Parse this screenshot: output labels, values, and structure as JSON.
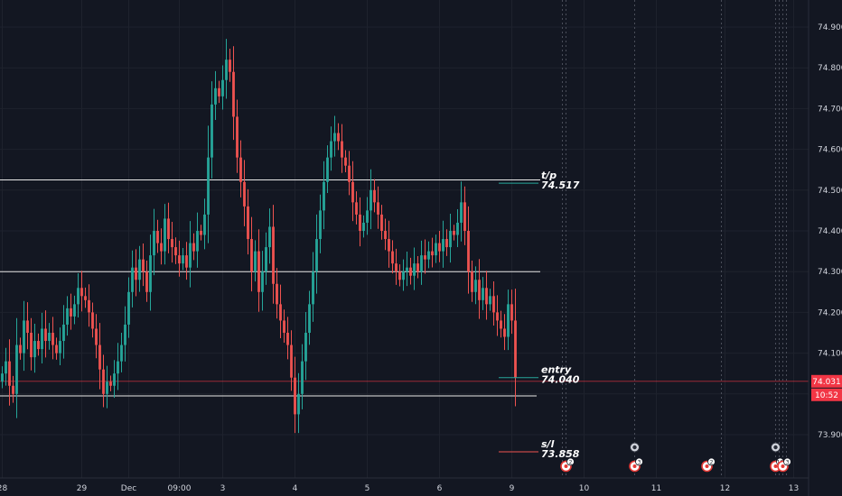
{
  "chart_data": {
    "type": "candlestick",
    "title": "",
    "xlabel": "",
    "ylabel": "",
    "ylim": [
      73.8,
      74.95
    ],
    "y_ticks": [
      "74.900",
      "74.800",
      "74.700",
      "74.600",
      "74.500",
      "74.400",
      "74.300",
      "74.200",
      "74.100",
      "74.000",
      "73.900"
    ],
    "x_ticks": [
      {
        "label": "28",
        "slot": 0
      },
      {
        "label": "29",
        "slot": 22
      },
      {
        "label": "Dec",
        "slot": 35
      },
      {
        "label": "09:00",
        "slot": 49
      },
      {
        "label": "3",
        "slot": 61
      },
      {
        "label": "4",
        "slot": 81
      },
      {
        "label": "5",
        "slot": 101
      },
      {
        "label": "6",
        "slot": 121
      },
      {
        "label": "9",
        "slot": 141
      },
      {
        "label": "10",
        "slot": 161
      },
      {
        "label": "11",
        "slot": 181
      },
      {
        "label": "12",
        "slot": 200
      },
      {
        "label": "13",
        "slot": 219
      }
    ],
    "current_price": "74.031",
    "countdown": "10:52",
    "horizontal_levels": [
      74.525,
      74.3,
      73.995
    ],
    "annotations": [
      {
        "label": "t/p",
        "value": "74.517",
        "price": 74.517
      },
      {
        "label": "entry",
        "value": "74.040",
        "price": 74.04
      },
      {
        "label": "s/l",
        "value": "73.858",
        "price": 73.858
      }
    ],
    "session_markers_slots": [
      155,
      156,
      175,
      199,
      214,
      215,
      216,
      217
    ],
    "event_markers": [
      {
        "slot": 156,
        "label": "2"
      },
      {
        "slot": 175,
        "label": "3"
      },
      {
        "slot": 195,
        "label": "2"
      },
      {
        "slot": 214,
        "label": "10"
      },
      {
        "slot": 216,
        "label": "3"
      }
    ],
    "closes": [
      74.05,
      74.08,
      74.02,
      74.0,
      74.12,
      74.1,
      74.18,
      74.15,
      74.09,
      74.13,
      74.11,
      74.16,
      74.13,
      74.15,
      74.12,
      74.1,
      74.13,
      74.17,
      74.21,
      74.19,
      74.22,
      74.26,
      74.24,
      74.23,
      74.2,
      74.16,
      74.12,
      74.06,
      74.0,
      74.03,
      74.02,
      74.05,
      74.08,
      74.12,
      74.17,
      74.25,
      74.31,
      74.28,
      74.33,
      74.3,
      74.25,
      74.34,
      74.4,
      74.37,
      74.35,
      74.43,
      74.38,
      74.36,
      74.34,
      74.32,
      74.34,
      74.31,
      74.37,
      74.35,
      74.4,
      74.39,
      74.44,
      74.58,
      74.71,
      74.75,
      74.73,
      74.77,
      74.82,
      74.79,
      74.68,
      74.58,
      74.52,
      74.46,
      74.38,
      74.3,
      74.35,
      74.25,
      74.3,
      74.36,
      74.41,
      74.27,
      74.22,
      74.18,
      74.15,
      74.12,
      74.04,
      73.95,
      74.0,
      74.08,
      74.15,
      74.22,
      74.3,
      74.38,
      74.45,
      74.52,
      74.58,
      74.62,
      74.64,
      74.62,
      74.58,
      74.56,
      74.52,
      74.47,
      74.44,
      74.4,
      74.42,
      74.45,
      74.5,
      74.47,
      74.44,
      74.4,
      74.38,
      74.35,
      74.32,
      74.3,
      74.28,
      74.3,
      74.31,
      74.29,
      74.32,
      74.3,
      74.34,
      74.33,
      74.35,
      74.34,
      74.37,
      74.35,
      74.38,
      74.36,
      74.4,
      74.39,
      74.42,
      74.47,
      74.4,
      74.3,
      74.25,
      74.28,
      74.23,
      74.26,
      74.22,
      74.24,
      74.2,
      74.18,
      74.16,
      74.14,
      74.22,
      74.18,
      74.04
    ]
  }
}
